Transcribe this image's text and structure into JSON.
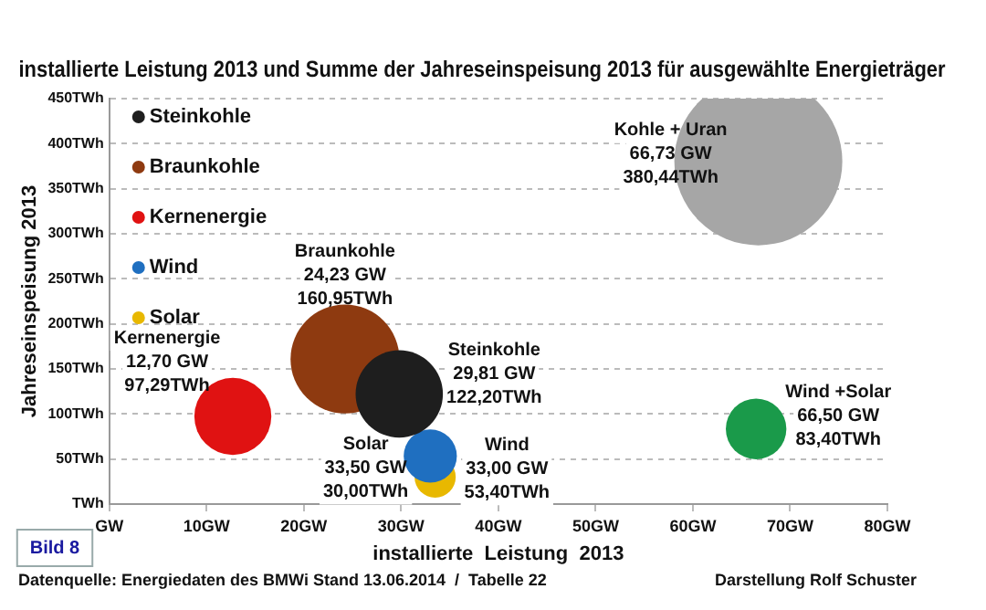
{
  "chart_data": {
    "type": "bubble",
    "title": "installierte Leistung 2013 und Summe der Jahreseinspeisung 2013 für ausgewählte Energieträger",
    "xlabel": "installierte  Leistung  2013",
    "ylabel": "Jahreseinspeisung 2013",
    "xlim": [
      0,
      80
    ],
    "xticks": [
      {
        "value": 0,
        "label": "GW"
      },
      {
        "value": 10,
        "label": "10GW"
      },
      {
        "value": 20,
        "label": "20GW"
      },
      {
        "value": 30,
        "label": "30GW"
      },
      {
        "value": 40,
        "label": "40GW"
      },
      {
        "value": 50,
        "label": "50GW"
      },
      {
        "value": 60,
        "label": "60GW"
      },
      {
        "value": 70,
        "label": "70GW"
      },
      {
        "value": 80,
        "label": "80GW"
      }
    ],
    "ylim": [
      0,
      450
    ],
    "yticks": [
      {
        "value": 0,
        "label": "TWh"
      },
      {
        "value": 50,
        "label": "50TWh"
      },
      {
        "value": 100,
        "label": "100TWh"
      },
      {
        "value": 150,
        "label": "150TWh"
      },
      {
        "value": 200,
        "label": "200TWh"
      },
      {
        "value": 250,
        "label": "250TWh"
      },
      {
        "value": 300,
        "label": "300TWh"
      },
      {
        "value": 350,
        "label": "350TWh"
      },
      {
        "value": 400,
        "label": "400TWh"
      },
      {
        "value": 450,
        "label": "450TWh"
      }
    ],
    "grid": "y",
    "legend": "top left",
    "series": [
      {
        "name": "Steinkohle",
        "color": "#1e1e1e",
        "x": [
          29.81
        ],
        "values": [
          122.2
        ],
        "sizes": [
          0.27
        ]
      },
      {
        "name": "Braunkohle",
        "color": "#8e3a10",
        "x": [
          24.23
        ],
        "values": [
          160.95
        ],
        "sizes": [
          0.42
        ]
      },
      {
        "name": "Kernenergie",
        "color": "#e01212",
        "x": [
          12.7
        ],
        "values": [
          97.29
        ],
        "sizes": [
          0.21
        ]
      },
      {
        "name": "Wind",
        "color": "#1f6fc0",
        "x": [
          33.0
        ],
        "values": [
          53.4
        ],
        "sizes": [
          0.1
        ]
      },
      {
        "name": "Solar",
        "color": "#e8b800",
        "x": [
          33.5
        ],
        "values": [
          30.0
        ],
        "sizes": [
          0.06
        ]
      },
      {
        "color": "#a6a6a6",
        "x": [
          66.73
        ],
        "values": [
          380.44
        ],
        "sizes": [
          1
        ]
      },
      {
        "color": "#1a9a4a",
        "x": [
          66.5
        ],
        "values": [
          83.4
        ],
        "sizes": [
          0.13
        ]
      }
    ],
    "annotations": [
      {
        "text": "Steinkohle\n29,81 GW\n122,20TWh",
        "x": 29.81,
        "y": 122.2
      },
      {
        "text": "Braunkohle\n24,23 GW\n160,95TWh",
        "x": 24.23,
        "y": 160.95
      },
      {
        "text": "Kernenergie\n12,70 GW\n97,29TWh",
        "x": 12.7,
        "y": 97.29
      },
      {
        "text": "Wind\n33,00 GW\n53,40TWh",
        "x": 33.0,
        "y": 53.4
      },
      {
        "text": "Solar\n33,50 GW\n30,00TWh",
        "x": 33.5,
        "y": 30.0
      },
      {
        "text": "Kohle + Uran\n66,73 GW\n380,44TWh",
        "x": 66.73,
        "y": 380.44
      },
      {
        "text": "Wind +Solar\n66,50 GW\n83,40TWh",
        "x": 66.5,
        "y": 83.4
      },
      "Bild 8",
      "Datenquelle: Energiedaten des BMWi Stand 13.06.2014  /  Tabelle 22",
      "Darstellung Rolf Schuster"
    ]
  }
}
